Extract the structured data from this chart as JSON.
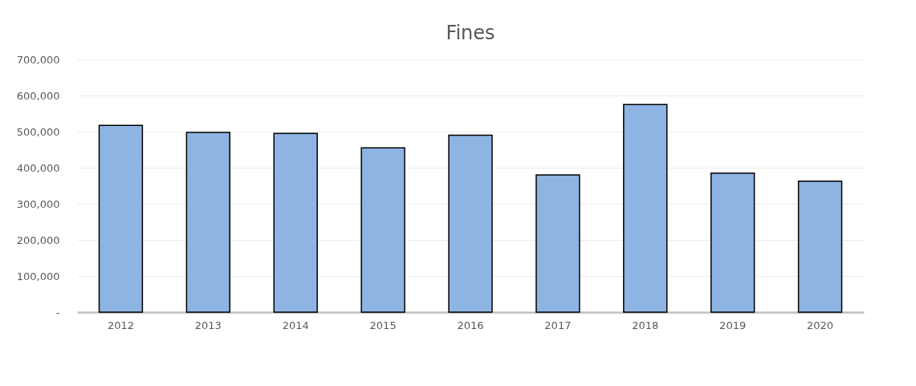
{
  "chart_data": {
    "type": "bar",
    "title": "Fines",
    "categories": [
      "2012",
      "2013",
      "2014",
      "2015",
      "2016",
      "2017",
      "2018",
      "2019",
      "2020"
    ],
    "values": [
      517000,
      498000,
      495000,
      455000,
      490000,
      380000,
      575000,
      385000,
      363000
    ],
    "color": "#8eb4e3",
    "ylim": [
      0,
      700000
    ],
    "yticks": [
      {
        "value": 0,
        "label": "-"
      },
      {
        "value": 100000,
        "label": "100,000"
      },
      {
        "value": 200000,
        "label": "200,000"
      },
      {
        "value": 300000,
        "label": "300,000"
      },
      {
        "value": 400000,
        "label": "400,000"
      },
      {
        "value": 500000,
        "label": "500,000"
      },
      {
        "value": 600000,
        "label": "600,000"
      },
      {
        "value": 700000,
        "label": "700,000"
      }
    ],
    "grid": "y"
  }
}
